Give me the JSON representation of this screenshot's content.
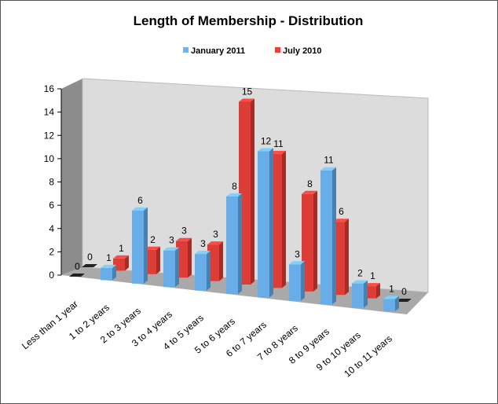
{
  "chart_data": {
    "type": "bar3d",
    "title": "Length of Membership - Distribution",
    "categories": [
      "Less than 1 year",
      "1 to 2 years",
      "2 to 3 years",
      "3 to 4 years",
      "4 to 5 years",
      "5 to 6 years",
      "6 to 7 years",
      "7 to 8 years",
      "8 to 9 years",
      "9 to 10 years",
      "10 to 11 years"
    ],
    "series": [
      {
        "name": "January 2011",
        "color": "#6db6f4",
        "values": [
          0,
          1,
          6,
          3,
          3,
          8,
          12,
          3,
          11,
          2,
          1
        ]
      },
      {
        "name": "July 2010",
        "color": "#e8413a",
        "values": [
          0,
          1,
          2,
          3,
          3,
          15,
          11,
          8,
          6,
          1,
          0
        ]
      }
    ],
    "ylim": [
      0,
      16
    ],
    "yticks": [
      0,
      2,
      4,
      6,
      8,
      10,
      12,
      14,
      16
    ]
  }
}
